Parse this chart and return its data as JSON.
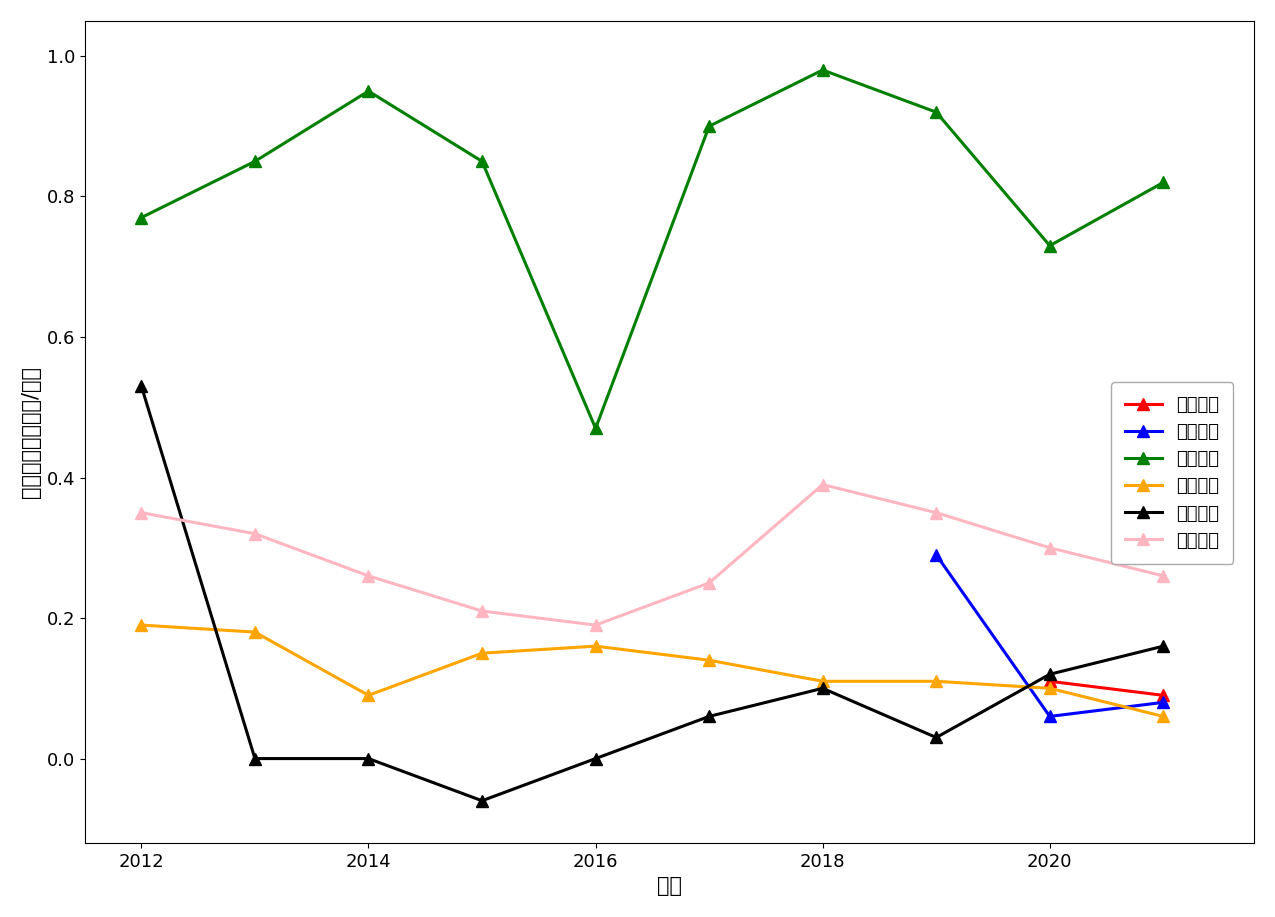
{
  "years": [
    2012,
    2013,
    2014,
    2015,
    2016,
    2017,
    2018,
    2019,
    2020,
    2021
  ],
  "series": [
    {
      "name": "中铁特货",
      "color": "#FF0000",
      "data": [
        null,
        null,
        null,
        null,
        null,
        null,
        null,
        null,
        0.11,
        0.09
      ]
    },
    {
      "name": "京沪高鐵",
      "color": "#0000FF",
      "data": [
        null,
        null,
        null,
        null,
        null,
        null,
        null,
        0.29,
        0.06,
        0.08
      ]
    },
    {
      "name": "大秦铁路",
      "color": "#008000",
      "data": [
        0.77,
        0.85,
        0.95,
        0.85,
        0.47,
        0.9,
        0.98,
        0.92,
        0.73,
        0.82
      ]
    },
    {
      "name": "广深铁路",
      "color": "#FFA500",
      "data": [
        0.19,
        0.18,
        0.09,
        0.15,
        0.16,
        0.14,
        0.11,
        0.11,
        0.1,
        0.06
      ]
    },
    {
      "name": "西部创业",
      "color": "#000000",
      "data": [
        0.53,
        0.0,
        0.0,
        -0.06,
        0.0,
        0.06,
        0.1,
        0.03,
        0.12,
        0.16
      ]
    },
    {
      "name": "铁龙物流",
      "color": "#FFB6C1",
      "data": [
        0.35,
        0.32,
        0.26,
        0.21,
        0.19,
        0.25,
        0.39,
        0.35,
        0.3,
        0.26
      ]
    }
  ],
  "xlabel": "年份",
  "ylabel": "基本每股收益（元/股）",
  "xlim": [
    2011.5,
    2021.8
  ],
  "ylim": [
    -0.12,
    1.05
  ],
  "xticks": [
    2012,
    2014,
    2016,
    2018,
    2020
  ],
  "axis_fontsize": 15,
  "legend_fontsize": 13,
  "tick_fontsize": 13,
  "marker_size": 9,
  "line_width": 2.2
}
